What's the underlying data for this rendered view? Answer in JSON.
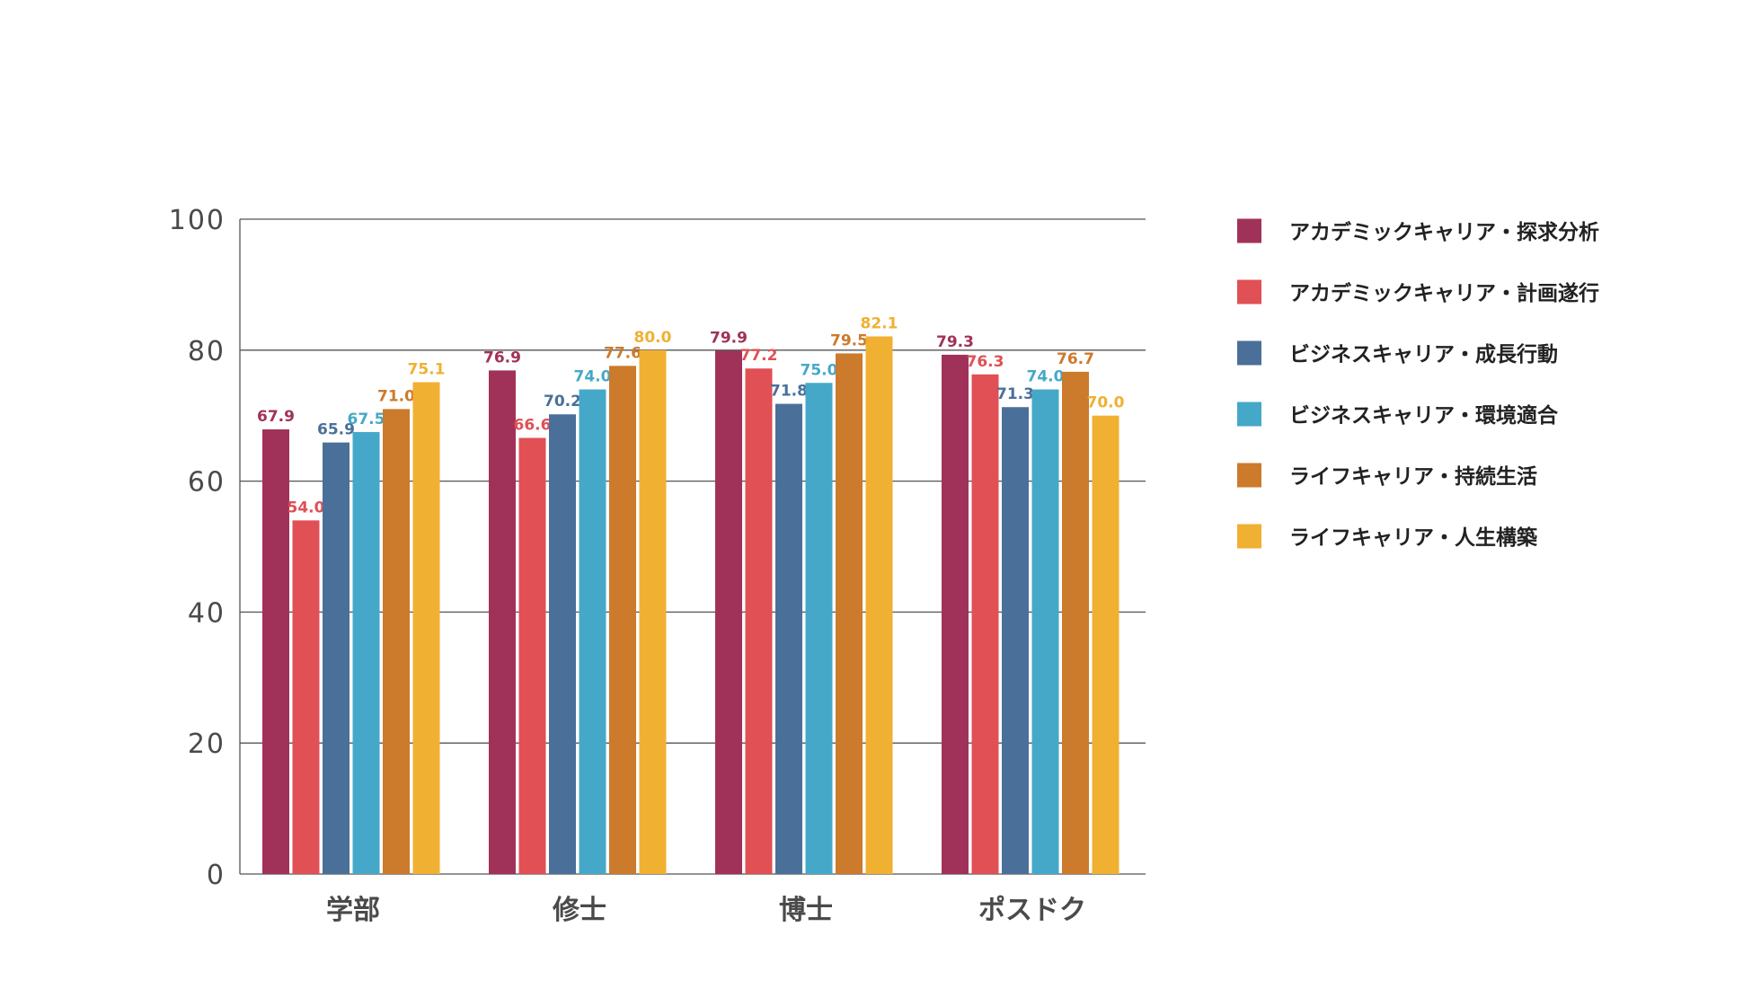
{
  "chart_data": {
    "type": "bar",
    "categories": [
      "学部",
      "修士",
      "博士",
      "ポスドク"
    ],
    "ylim": [
      0,
      100
    ],
    "yticks": [
      0,
      20,
      40,
      60,
      80,
      100
    ],
    "grid": true,
    "legend_position": "right",
    "series": [
      {
        "name": "アカデミックキャリア・探求分析",
        "color": "#a0325a",
        "values": [
          67.9,
          76.9,
          79.9,
          79.3
        ]
      },
      {
        "name": "アカデミックキャリア・計画遂行",
        "color": "#e05055",
        "values": [
          54.0,
          66.6,
          77.2,
          76.3
        ]
      },
      {
        "name": "ビジネスキャリア・成長行動",
        "color": "#4a7099",
        "values": [
          65.9,
          70.2,
          71.8,
          71.3
        ]
      },
      {
        "name": "ビジネスキャリア・環境適合",
        "color": "#46a8c8",
        "values": [
          67.5,
          74.0,
          75.0,
          74.0
        ]
      },
      {
        "name": "ライフキャリア・持続生活",
        "color": "#cc7a2c",
        "values": [
          71.0,
          77.6,
          79.5,
          76.7
        ]
      },
      {
        "name": "ライフキャリア・人生構築",
        "color": "#f0b032",
        "values": [
          75.1,
          80.0,
          82.1,
          70.0
        ]
      }
    ]
  }
}
